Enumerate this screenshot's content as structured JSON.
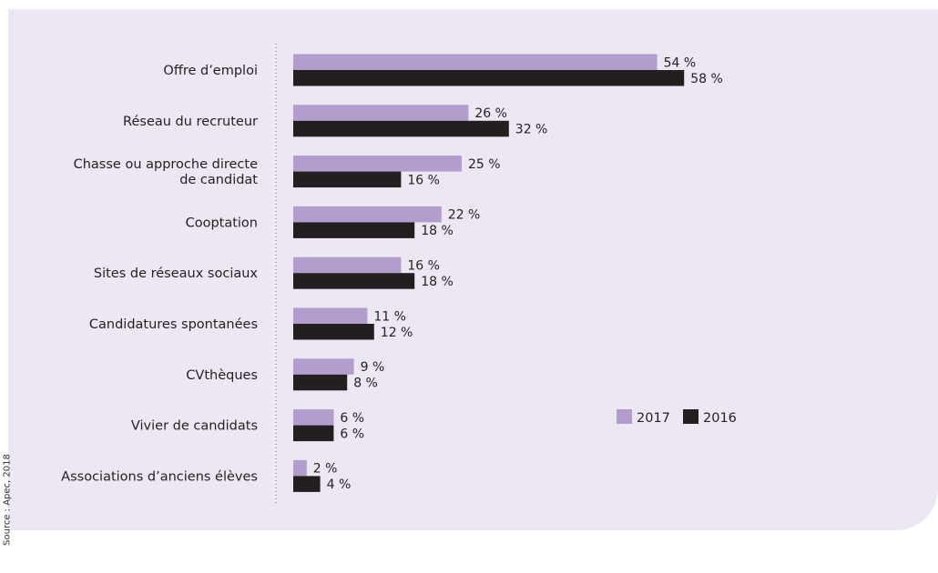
{
  "source": "Source : Apec, 2018",
  "chart_data": {
    "type": "bar",
    "orientation": "horizontal",
    "categories": [
      "Offre d’emploi",
      "Réseau du recruteur",
      "Chasse ou approche directe\nde candidat",
      "Cooptation",
      "Sites de réseaux sociaux",
      "Candidatures spontanées",
      "CVthèques",
      "Vivier de candidats",
      "Associations d’anciens élèves"
    ],
    "series": [
      {
        "name": "2017",
        "color": "#b29dcd",
        "values": [
          54,
          26,
          25,
          22,
          16,
          11,
          9,
          6,
          2
        ]
      },
      {
        "name": "2016",
        "color": "#231f20",
        "values": [
          58,
          32,
          16,
          18,
          18,
          12,
          8,
          6,
          4
        ]
      }
    ],
    "value_suffix": " %",
    "xlim": [
      0,
      60
    ],
    "grid": false,
    "legend_position": "right"
  }
}
